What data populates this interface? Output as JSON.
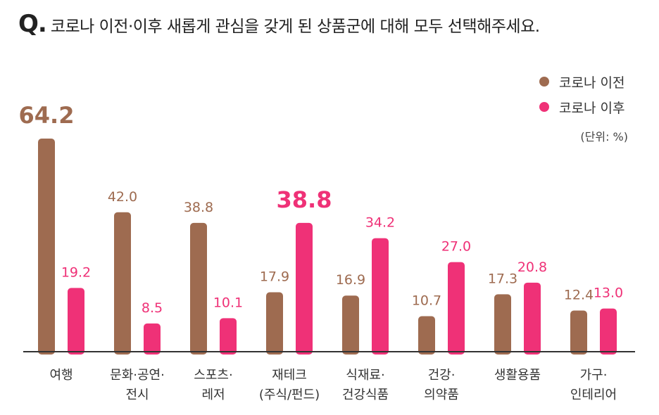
{
  "question": {
    "marker": "Q.",
    "text": "코로나 이전·이후 새롭게 관심을 갖게 된 상품군에 대해 모두 선택해주세요."
  },
  "legend": [
    {
      "label": "코로나 이전",
      "color": "#9e6b50"
    },
    {
      "label": "코로나 이후",
      "color": "#ef3177"
    }
  ],
  "unit": "(단위: %)",
  "chart_data": {
    "type": "bar",
    "title": "코로나 이전·이후 새롭게 관심을 갖게 된 상품군에 대해 모두 선택해주세요.",
    "categories": [
      [
        "여행"
      ],
      [
        "문화·공연·",
        "전시"
      ],
      [
        "스포츠·",
        "레저"
      ],
      [
        "재테크",
        "(주식/펀드)"
      ],
      [
        "식재료·",
        "건강식품"
      ],
      [
        "건강·",
        "의약품"
      ],
      [
        "생활용품"
      ],
      [
        "가구·",
        "인테리어"
      ]
    ],
    "series": [
      {
        "name": "코로나 이전",
        "color": "#9e6b50",
        "values": [
          64.2,
          42.0,
          38.8,
          17.9,
          16.9,
          10.7,
          17.3,
          12.4
        ],
        "labels": [
          "64.2",
          "42.0",
          "38.8",
          "17.9",
          "16.9",
          "10.7",
          "17.3",
          "12.4"
        ]
      },
      {
        "name": "코로나 이후",
        "color": "#ef3177",
        "values": [
          19.2,
          8.5,
          10.1,
          38.8,
          34.2,
          27.0,
          20.8,
          13.0
        ],
        "labels": [
          "19.2",
          "8.5",
          "10.1",
          "38.8",
          "34.2",
          "27.0",
          "20.8",
          "13.0"
        ]
      }
    ],
    "highlight": [
      {
        "series": 0,
        "index": 0
      },
      {
        "series": 1,
        "index": 3
      }
    ],
    "xlabel": "",
    "ylabel": "",
    "ylim": [
      0,
      70
    ],
    "grid": false,
    "legend_position": "top-right",
    "unit": "%"
  }
}
